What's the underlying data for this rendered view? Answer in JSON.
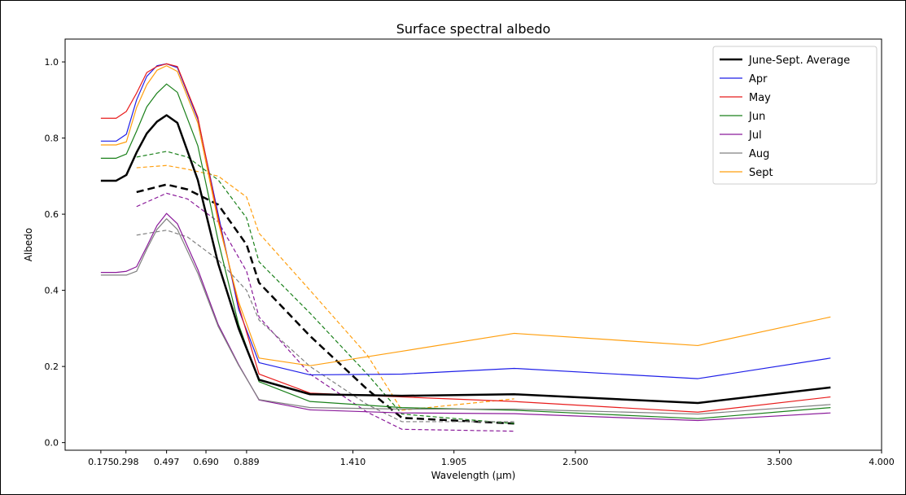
{
  "chart_data": {
    "type": "line",
    "title": "Surface spectral albedo",
    "xlabel": "Wavelength (μm)",
    "ylabel": "Albedo",
    "xlim": [
      0.0,
      4.0
    ],
    "ylim": [
      -0.02,
      1.06
    ],
    "xticks": [
      {
        "v": 0.175,
        "label": "0.175"
      },
      {
        "v": 0.298,
        "label": "0.298"
      },
      {
        "v": 0.497,
        "label": "0.497"
      },
      {
        "v": 0.69,
        "label": "0.690"
      },
      {
        "v": 0.889,
        "label": "0.889"
      },
      {
        "v": 1.41,
        "label": "1.410"
      },
      {
        "v": 1.905,
        "label": "1.905"
      },
      {
        "v": 2.5,
        "label": "2.500"
      },
      {
        "v": 3.5,
        "label": "3.500"
      },
      {
        "v": 4.0,
        "label": "4.000"
      }
    ],
    "yticks": [
      {
        "v": 0.0,
        "label": "0.0"
      },
      {
        "v": 0.2,
        "label": "0.2"
      },
      {
        "v": 0.4,
        "label": "0.4"
      },
      {
        "v": 0.6,
        "label": "0.6"
      },
      {
        "v": 0.8,
        "label": "0.8"
      },
      {
        "v": 1.0,
        "label": "1.0"
      }
    ],
    "grid": false,
    "legend_position": "top-right",
    "x": [
      0.175,
      0.25,
      0.3,
      0.35,
      0.4,
      0.45,
      0.497,
      0.55,
      0.65,
      0.75,
      0.85,
      0.95,
      1.2,
      1.65,
      2.2,
      3.1,
      3.75
    ],
    "series": [
      {
        "name": "June-Sept. Average",
        "color": "#000000",
        "width": 2.5,
        "values": [
          0.688,
          0.688,
          0.703,
          0.762,
          0.812,
          0.843,
          0.86,
          0.84,
          0.69,
          0.47,
          0.3,
          0.165,
          0.127,
          0.123,
          0.127,
          0.104,
          0.145
        ]
      },
      {
        "name": "Apr",
        "color": "#1f1fe8",
        "width": 1.2,
        "values": [
          0.792,
          0.792,
          0.81,
          0.9,
          0.962,
          0.99,
          0.995,
          0.985,
          0.85,
          0.6,
          0.35,
          0.21,
          0.178,
          0.18,
          0.195,
          0.168,
          0.222
        ]
      },
      {
        "name": "May",
        "color": "#e81c1c",
        "width": 1.2,
        "values": [
          0.852,
          0.852,
          0.87,
          0.918,
          0.972,
          0.988,
          0.995,
          0.988,
          0.855,
          0.59,
          0.36,
          0.18,
          0.13,
          0.12,
          0.108,
          0.08,
          0.12
        ]
      },
      {
        "name": "Jun",
        "color": "#1a801a",
        "width": 1.2,
        "values": [
          0.747,
          0.747,
          0.758,
          0.818,
          0.882,
          0.918,
          0.942,
          0.92,
          0.78,
          0.53,
          0.31,
          0.16,
          0.108,
          0.092,
          0.085,
          0.063,
          0.092
        ]
      },
      {
        "name": "Jul",
        "color": "#8a1a9a",
        "width": 1.2,
        "values": [
          0.447,
          0.447,
          0.45,
          0.462,
          0.515,
          0.57,
          0.602,
          0.575,
          0.455,
          0.31,
          0.205,
          0.112,
          0.086,
          0.078,
          0.076,
          0.058,
          0.078
        ]
      },
      {
        "name": "Aug",
        "color": "#808080",
        "width": 1.2,
        "values": [
          0.44,
          0.44,
          0.44,
          0.45,
          0.508,
          0.56,
          0.588,
          0.56,
          0.445,
          0.305,
          0.203,
          0.113,
          0.092,
          0.088,
          0.088,
          0.075,
          0.1
        ]
      },
      {
        "name": "Sept",
        "color": "#ff9f0f",
        "width": 1.2,
        "values": [
          0.782,
          0.782,
          0.79,
          0.88,
          0.94,
          0.978,
          0.99,
          0.975,
          0.84,
          0.58,
          0.37,
          0.222,
          0.202,
          0.24,
          0.287,
          0.255,
          0.33
        ]
      }
    ],
    "dashed_series": [
      {
        "name": "June-Sept. Average",
        "color": "#000000",
        "width": 2.5,
        "x": [
          0.35,
          0.497,
          0.6,
          0.75,
          0.889,
          0.95,
          1.2,
          1.48,
          1.65,
          2.2
        ],
        "values": [
          0.658,
          0.678,
          0.665,
          0.625,
          0.52,
          0.42,
          0.28,
          0.14,
          0.065,
          0.05
        ]
      },
      {
        "name": "Jun",
        "color": "#1a801a",
        "width": 1.2,
        "x": [
          0.35,
          0.497,
          0.6,
          0.75,
          0.889,
          0.95,
          1.2,
          1.48,
          1.65,
          2.2
        ],
        "values": [
          0.75,
          0.765,
          0.75,
          0.69,
          0.59,
          0.475,
          0.34,
          0.18,
          0.075,
          0.05
        ]
      },
      {
        "name": "Jul",
        "color": "#8a1a9a",
        "width": 1.2,
        "x": [
          0.35,
          0.497,
          0.6,
          0.75,
          0.889,
          0.95,
          1.2,
          1.48,
          1.65,
          2.2
        ],
        "values": [
          0.62,
          0.655,
          0.64,
          0.58,
          0.45,
          0.33,
          0.18,
          0.08,
          0.035,
          0.03
        ]
      },
      {
        "name": "Aug",
        "color": "#808080",
        "width": 1.2,
        "x": [
          0.35,
          0.497,
          0.6,
          0.75,
          0.889,
          0.95,
          1.2,
          1.48,
          1.65,
          2.2
        ],
        "values": [
          0.545,
          0.558,
          0.54,
          0.48,
          0.4,
          0.322,
          0.2,
          0.1,
          0.055,
          0.055
        ]
      },
      {
        "name": "Sept",
        "color": "#ff9f0f",
        "width": 1.2,
        "x": [
          0.35,
          0.497,
          0.6,
          0.75,
          0.889,
          0.95,
          1.2,
          1.48,
          1.65,
          2.2
        ],
        "values": [
          0.722,
          0.728,
          0.718,
          0.7,
          0.645,
          0.55,
          0.4,
          0.23,
          0.085,
          0.115
        ]
      }
    ]
  }
}
